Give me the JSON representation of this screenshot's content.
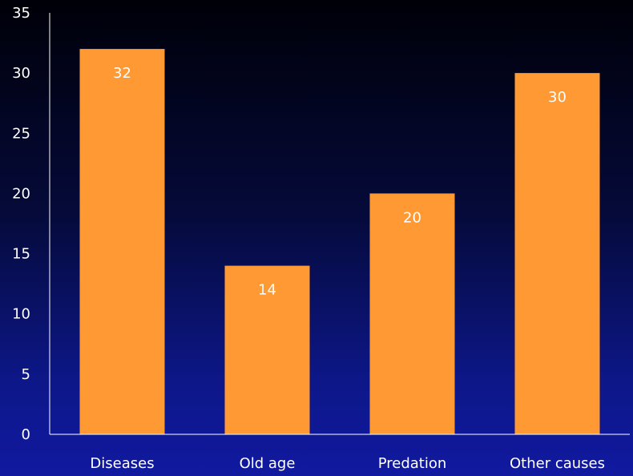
{
  "chart_data": {
    "type": "bar",
    "categories": [
      "Diseases",
      "Old age",
      "Predation",
      "Other causes"
    ],
    "values": [
      32,
      14,
      20,
      30
    ],
    "data_labels": [
      "32",
      "14",
      "20",
      "30"
    ],
    "title": "",
    "xlabel": "",
    "ylabel": "",
    "ylim": [
      0,
      35
    ],
    "yticks": [
      0,
      5,
      10,
      15,
      20,
      25,
      30,
      35
    ],
    "ytick_labels": [
      "0",
      "5",
      "10",
      "15",
      "20",
      "25",
      "30",
      "35"
    ],
    "grid": false,
    "legend": "none",
    "colors": {
      "bar": "#ff9933",
      "axis": "#ffffff",
      "text": "#ffffff",
      "background_top": "#000008",
      "background_bottom": "#1119a0"
    }
  }
}
